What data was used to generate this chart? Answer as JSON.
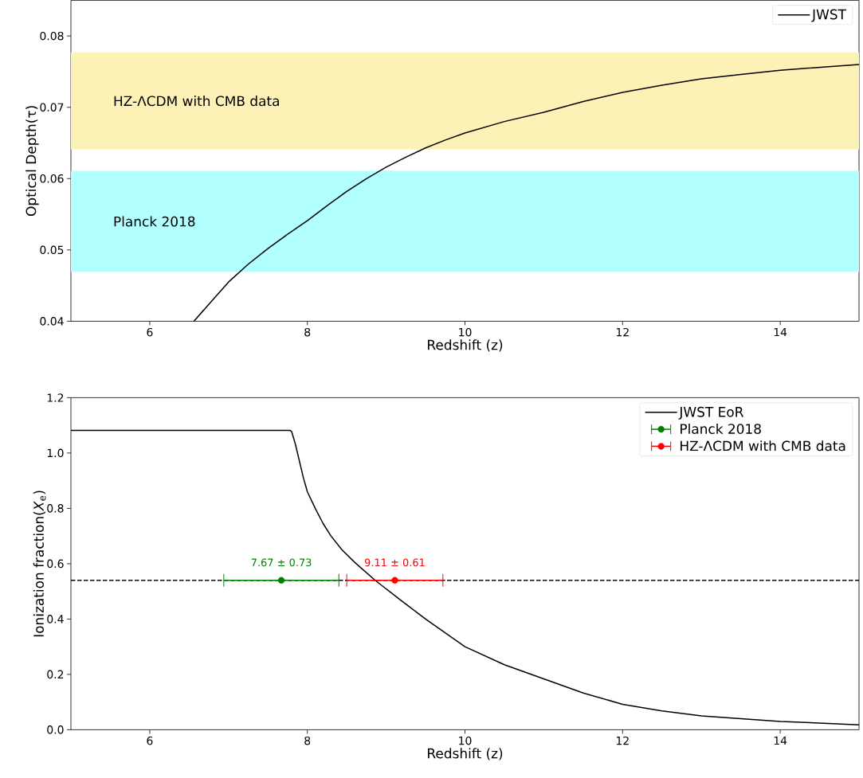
{
  "chart_data": [
    {
      "type": "line",
      "xlabel": "Redshift (z)",
      "ylabel": "Optical Depth(τ)",
      "xlim": [
        5,
        15
      ],
      "ylim": [
        0.04,
        0.085
      ],
      "xticks": [
        6,
        8,
        10,
        12,
        14
      ],
      "yticks": [
        0.04,
        0.05,
        0.06,
        0.07,
        0.08
      ],
      "legend": "top right",
      "series": [
        {
          "name": "JWST",
          "color": "#000000",
          "x": [
            6.56,
            6.8,
            7,
            7.25,
            7.5,
            7.75,
            8,
            8.25,
            8.5,
            8.75,
            9,
            9.25,
            9.5,
            9.75,
            10,
            10.5,
            11,
            11.5,
            12,
            12.5,
            13,
            13.5,
            14,
            14.5,
            15
          ],
          "values": [
            0.04,
            0.043,
            0.0455,
            0.048,
            0.0502,
            0.0522,
            0.0541,
            0.0562,
            0.0582,
            0.06,
            0.0616,
            0.063,
            0.0643,
            0.0654,
            0.0664,
            0.068,
            0.0693,
            0.0708,
            0.0721,
            0.0731,
            0.074,
            0.0746,
            0.0752,
            0.0756,
            0.076
          ]
        }
      ],
      "bands": [
        {
          "axis": "y",
          "from": 0.0641,
          "to": 0.0777,
          "label": "HZ-ΛCDM with CMB data",
          "color": "#fcf2b6"
        },
        {
          "axis": "y",
          "from": 0.0469,
          "to": 0.0611,
          "label": "Planck 2018",
          "color": "#b2ffff"
        }
      ]
    },
    {
      "type": "line",
      "xlabel": "Redshift (z)",
      "ylabel": "Ionization fraction(*X*$_{e}$)",
      "xlim": [
        5,
        15
      ],
      "ylim": [
        0,
        1.2
      ],
      "xticks": [
        6,
        8,
        10,
        12,
        14
      ],
      "yticks": [
        {
          "value": 0,
          "label": "0.0"
        },
        0.2,
        0.4,
        0.6,
        0.8,
        {
          "value": 1,
          "label": "1.0"
        },
        1.2
      ],
      "legend": "top right",
      "series": [
        {
          "name": "JWST EoR",
          "color": "#000000",
          "x": [
            5,
            7.78,
            7.8,
            7.85,
            7.9,
            7.95,
            8,
            8.1,
            8.2,
            8.3,
            8.44,
            8.6,
            8.86,
            9.2,
            9.5,
            10,
            10.5,
            11,
            11.5,
            12,
            12.5,
            13,
            14,
            15
          ],
          "values": [
            1.082,
            1.082,
            1.078,
            1.03,
            0.97,
            0.91,
            0.86,
            0.8,
            0.745,
            0.7,
            0.65,
            0.605,
            0.54,
            0.465,
            0.4,
            0.3,
            0.235,
            0.184,
            0.133,
            0.092,
            0.068,
            0.05,
            0.03,
            0.018
          ]
        },
        {
          "name": "Planck 2018",
          "type": "scatter",
          "color": "#008000",
          "marker": "circle",
          "x": [
            7.67
          ],
          "values": [
            0.54
          ],
          "xerrors": [
            0.73
          ]
        },
        {
          "name": "HZ-ΛCDM with CMB data",
          "type": "scatter",
          "color": "#ff0000",
          "marker": "circle",
          "x": [
            9.11
          ],
          "values": [
            0.54
          ],
          "xerrors": [
            0.61
          ]
        }
      ],
      "ref_lines": [
        {
          "axis": "y",
          "value": 0.54,
          "line_style": "dashed",
          "color": "#000000"
        }
      ],
      "annotations": [
        "7.67 ± 0.73",
        "9.11 ± 0.61"
      ]
    }
  ]
}
